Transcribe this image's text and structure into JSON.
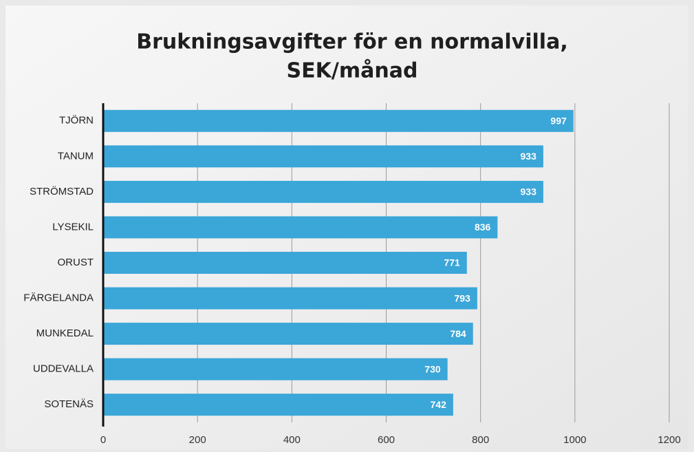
{
  "chart_data": {
    "type": "bar",
    "orientation": "horizontal",
    "title": [
      "Brukningsavgifter för en normalvilla,",
      "SEK/månad"
    ],
    "categories": [
      "TJÖRN",
      "TANUM",
      "STRÖMSTAD",
      "LYSEKIL",
      "ORUST",
      "FÄRGELANDA",
      "MUNKEDAL",
      "UDDEVALLA",
      "SOTENÄS"
    ],
    "values": [
      997,
      933,
      933,
      836,
      771,
      793,
      784,
      730,
      742
    ],
    "color": "#3ba6d8",
    "xlim": [
      0,
      1200
    ],
    "xticks": [
      0,
      200,
      400,
      600,
      800,
      1000,
      1200
    ],
    "grid": true
  }
}
